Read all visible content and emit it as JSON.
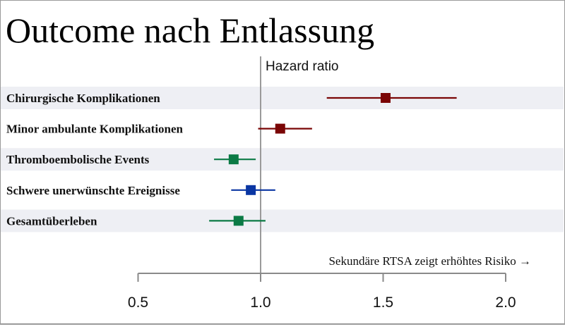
{
  "chart_data": {
    "type": "forest",
    "title": "Outcome nach Entlassung",
    "xlabel": "Hazard ratio",
    "annotation": "Sekundäre RTSA zeigt erhöhtes Risiko →",
    "xlim": [
      0.5,
      2.0
    ],
    "reference_line": 1.0,
    "ticks": [
      "0.5",
      "1.0",
      "1.5",
      "2.0"
    ],
    "tick_values": [
      0.5,
      1.0,
      1.5,
      2.0
    ],
    "rows": [
      {
        "label": "Chirurgische Komplikationen",
        "hr": 1.51,
        "lower": 1.27,
        "upper": 1.8,
        "color": "#7a0505",
        "band": true
      },
      {
        "label": "Minor ambulante Komplikationen",
        "hr": 1.08,
        "lower": 0.99,
        "upper": 1.21,
        "color": "#7a0505",
        "band": false
      },
      {
        "label": "Thromboembolische Events",
        "hr": 0.89,
        "lower": 0.81,
        "upper": 0.98,
        "color": "#0b7a45",
        "band": true
      },
      {
        "label": "Schwere unerwünschte Ereignisse",
        "hr": 0.96,
        "lower": 0.88,
        "upper": 1.06,
        "color": "#0a36a3",
        "band": false
      },
      {
        "label": "Gesamtüberleben",
        "hr": 0.91,
        "lower": 0.79,
        "upper": 1.02,
        "color": "#0b7a45",
        "band": true
      }
    ]
  }
}
